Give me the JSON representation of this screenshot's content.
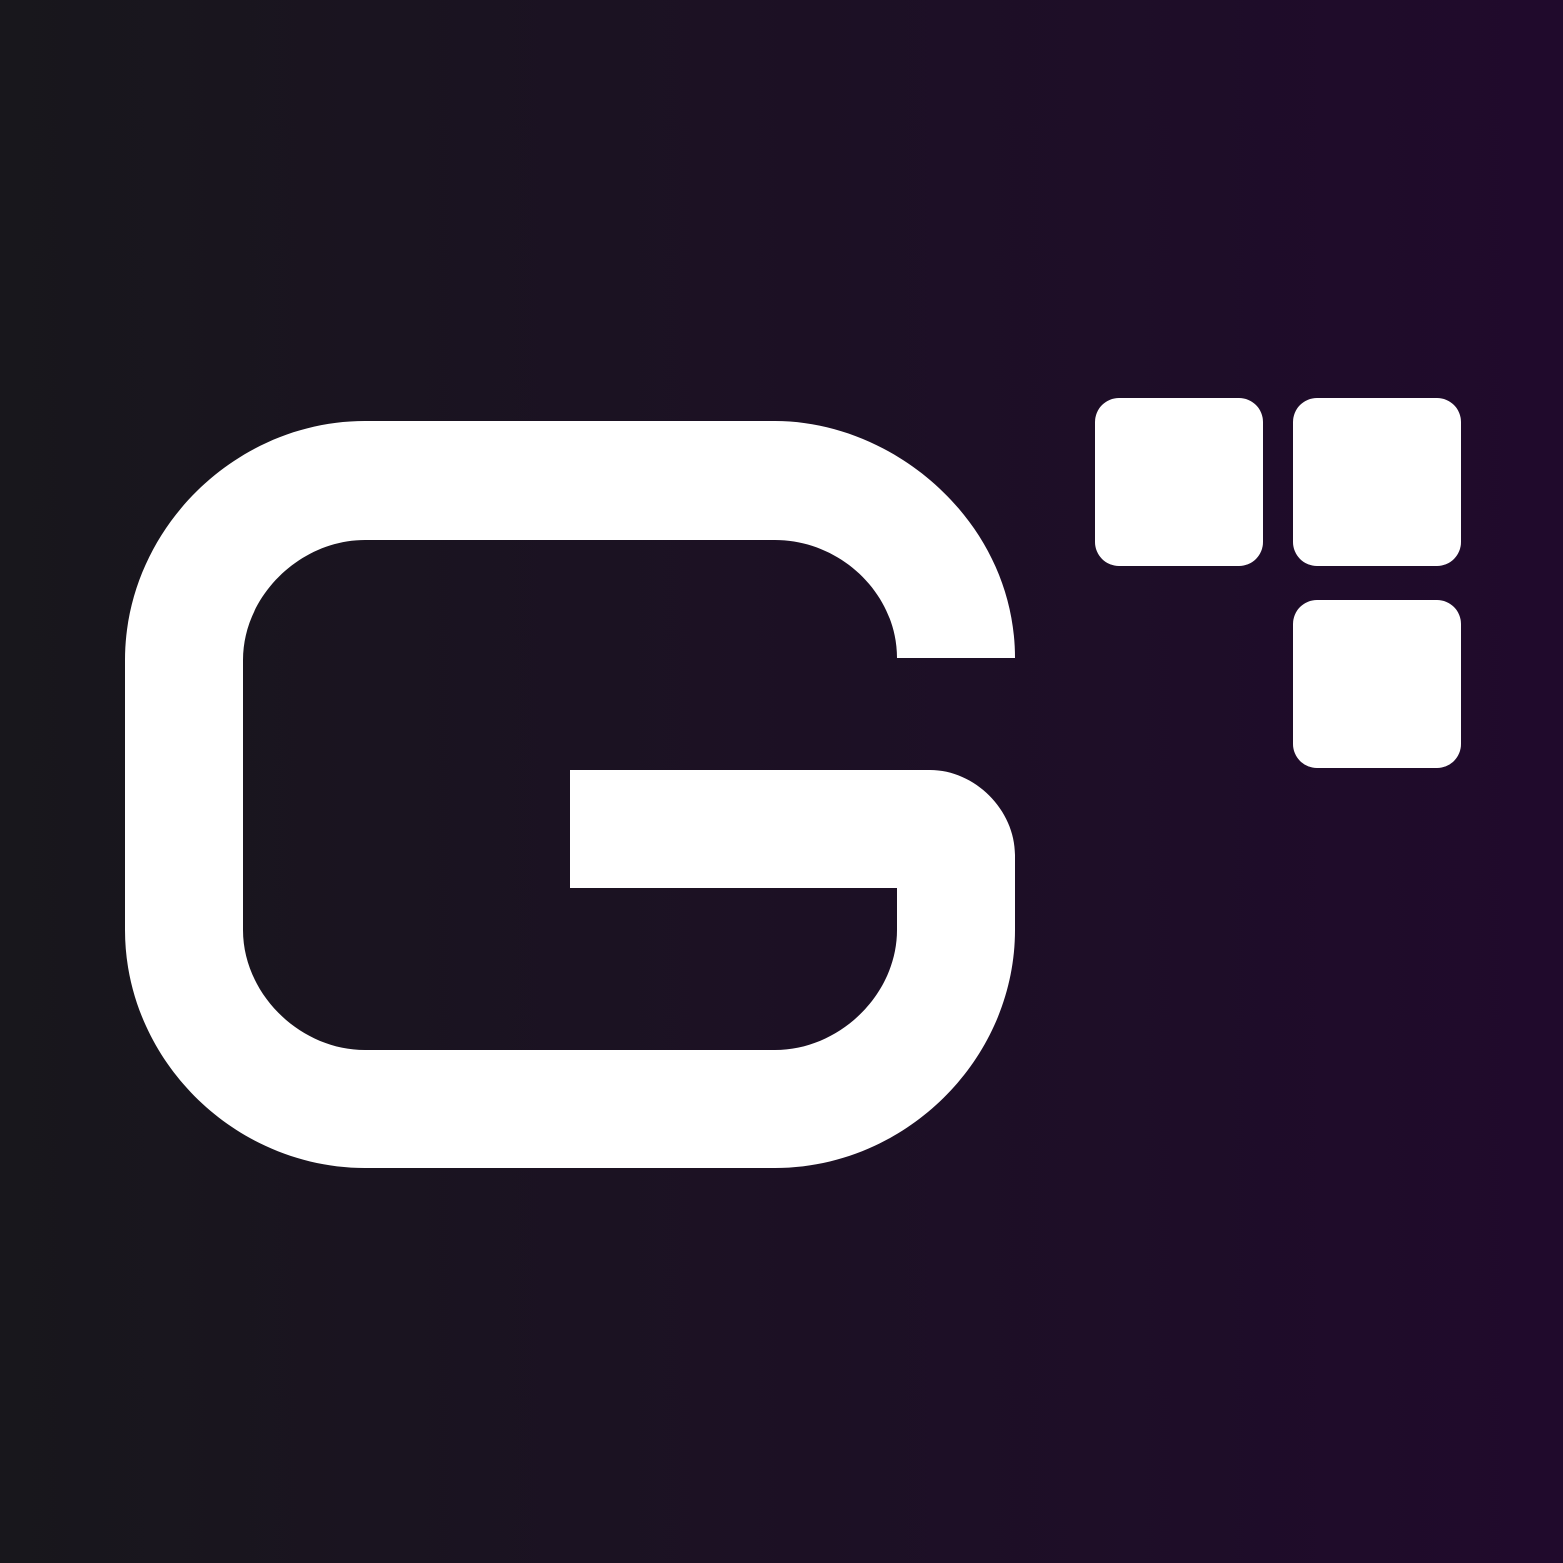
{
  "brand": {
    "logo_icon": "g-grid-logo-icon",
    "colors": {
      "background_start": "#18171c",
      "background_end": "#200a2c",
      "foreground": "#ffffff"
    }
  }
}
